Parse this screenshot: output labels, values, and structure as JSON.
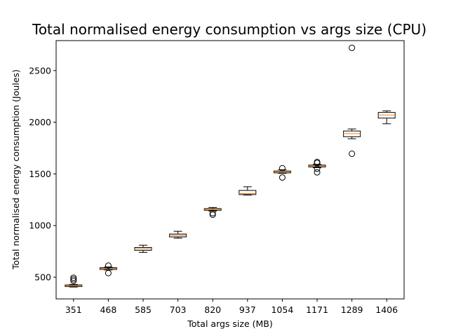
{
  "chart_data": {
    "type": "box",
    "title": "Total normalised energy consumption vs args size (CPU)",
    "xlabel": "Total args size (MB)",
    "ylabel": "Total normalised energy consumption (Joules)",
    "ylim": [
      290,
      2790
    ],
    "yticks": [
      500,
      1000,
      1500,
      2000,
      2500
    ],
    "grid": false,
    "legend": "none",
    "colors": {
      "box": "#000000",
      "median": "#ff7f0e",
      "background": "#ffffff"
    },
    "categories": [
      "351",
      "468",
      "585",
      "703",
      "820",
      "937",
      "1054",
      "1171",
      "1289",
      "1406"
    ],
    "boxes": [
      {
        "whisker_low": 405,
        "q1": 410,
        "median": 418,
        "q3": 425,
        "whisker_high": 430,
        "fliers": [
          465,
          480,
          495
        ]
      },
      {
        "whisker_low": 570,
        "q1": 575,
        "median": 585,
        "q3": 592,
        "whisker_high": 600,
        "fliers": [
          540,
          612
        ]
      },
      {
        "whisker_low": 740,
        "q1": 760,
        "median": 775,
        "q3": 788,
        "whisker_high": 810,
        "fliers": []
      },
      {
        "whisker_low": 878,
        "q1": 890,
        "median": 905,
        "q3": 918,
        "whisker_high": 945,
        "fliers": []
      },
      {
        "whisker_low": 1140,
        "q1": 1148,
        "median": 1158,
        "q3": 1164,
        "whisker_high": 1175,
        "fliers": [
          1105,
          1120
        ]
      },
      {
        "whisker_low": 1295,
        "q1": 1300,
        "median": 1310,
        "q3": 1340,
        "whisker_high": 1375,
        "fliers": []
      },
      {
        "whisker_low": 1505,
        "q1": 1510,
        "median": 1518,
        "q3": 1528,
        "whisker_high": 1540,
        "fliers": [
          1465,
          1555
        ]
      },
      {
        "whisker_low": 1560,
        "q1": 1567,
        "median": 1577,
        "q3": 1585,
        "whisker_high": 1592,
        "fliers": [
          1515,
          1550,
          1605,
          1615
        ]
      },
      {
        "whisker_low": 1840,
        "q1": 1860,
        "median": 1890,
        "q3": 1915,
        "whisker_high": 1935,
        "fliers": [
          1695,
          2720
        ]
      },
      {
        "whisker_low": 1985,
        "q1": 2040,
        "median": 2070,
        "q3": 2095,
        "whisker_high": 2110,
        "fliers": []
      }
    ]
  }
}
